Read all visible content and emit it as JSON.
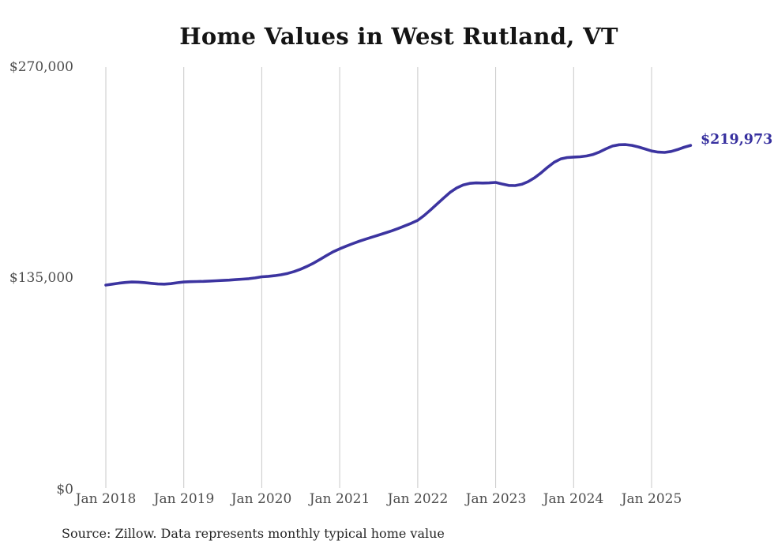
{
  "chart_data": {
    "type": "line",
    "title": "Home Values in West Rutland, VT",
    "source_note": "Source: Zillow. Data represents monthly typical home value",
    "end_label": "$219,973",
    "x_tick_labels": [
      "Jan 2018",
      "Jan 2019",
      "Jan 2020",
      "Jan 2021",
      "Jan 2022",
      "Jan 2023",
      "Jan 2024",
      "Jan 2025"
    ],
    "y_tick_labels": [
      "$270,000",
      "$135,000",
      "$0"
    ],
    "y_tick_values": [
      270000,
      135000,
      0
    ],
    "ylim": [
      0,
      270000
    ],
    "grid": "vertical-only",
    "legend_position": "none",
    "colors": {
      "line": "#3c34a0",
      "end_label": "#37309f",
      "grid": "#c8c8c8",
      "axis_text": "#4d4d4d",
      "title_text": "#141414",
      "source_text": "#252525",
      "background": "#ffffff"
    },
    "series": [
      {
        "name": "Monthly typical home value",
        "start": "2018-01",
        "interval": "monthly",
        "values": [
          130700,
          131300,
          131900,
          132400,
          132700,
          132600,
          132300,
          131800,
          131400,
          131300,
          131600,
          132200,
          132700,
          132900,
          133000,
          133100,
          133300,
          133500,
          133700,
          133900,
          134200,
          134500,
          134800,
          135300,
          136000,
          136300,
          136700,
          137300,
          138200,
          139400,
          140900,
          142700,
          144800,
          147200,
          149700,
          152000,
          153900,
          155600,
          157200,
          158700,
          160100,
          161400,
          162700,
          164000,
          165400,
          166900,
          168500,
          170200,
          172100,
          175200,
          178800,
          182600,
          186400,
          190000,
          192800,
          194700,
          195700,
          196000,
          195900,
          196000,
          196300,
          195300,
          194400,
          194300,
          195100,
          196800,
          199300,
          202500,
          206000,
          209200,
          211300,
          212200,
          212500,
          212700,
          213200,
          214200,
          215800,
          217800,
          219600,
          220400,
          220500,
          220000,
          219000,
          217700,
          216400,
          215700,
          215500,
          216100,
          217300,
          218800,
          219973
        ]
      }
    ]
  }
}
